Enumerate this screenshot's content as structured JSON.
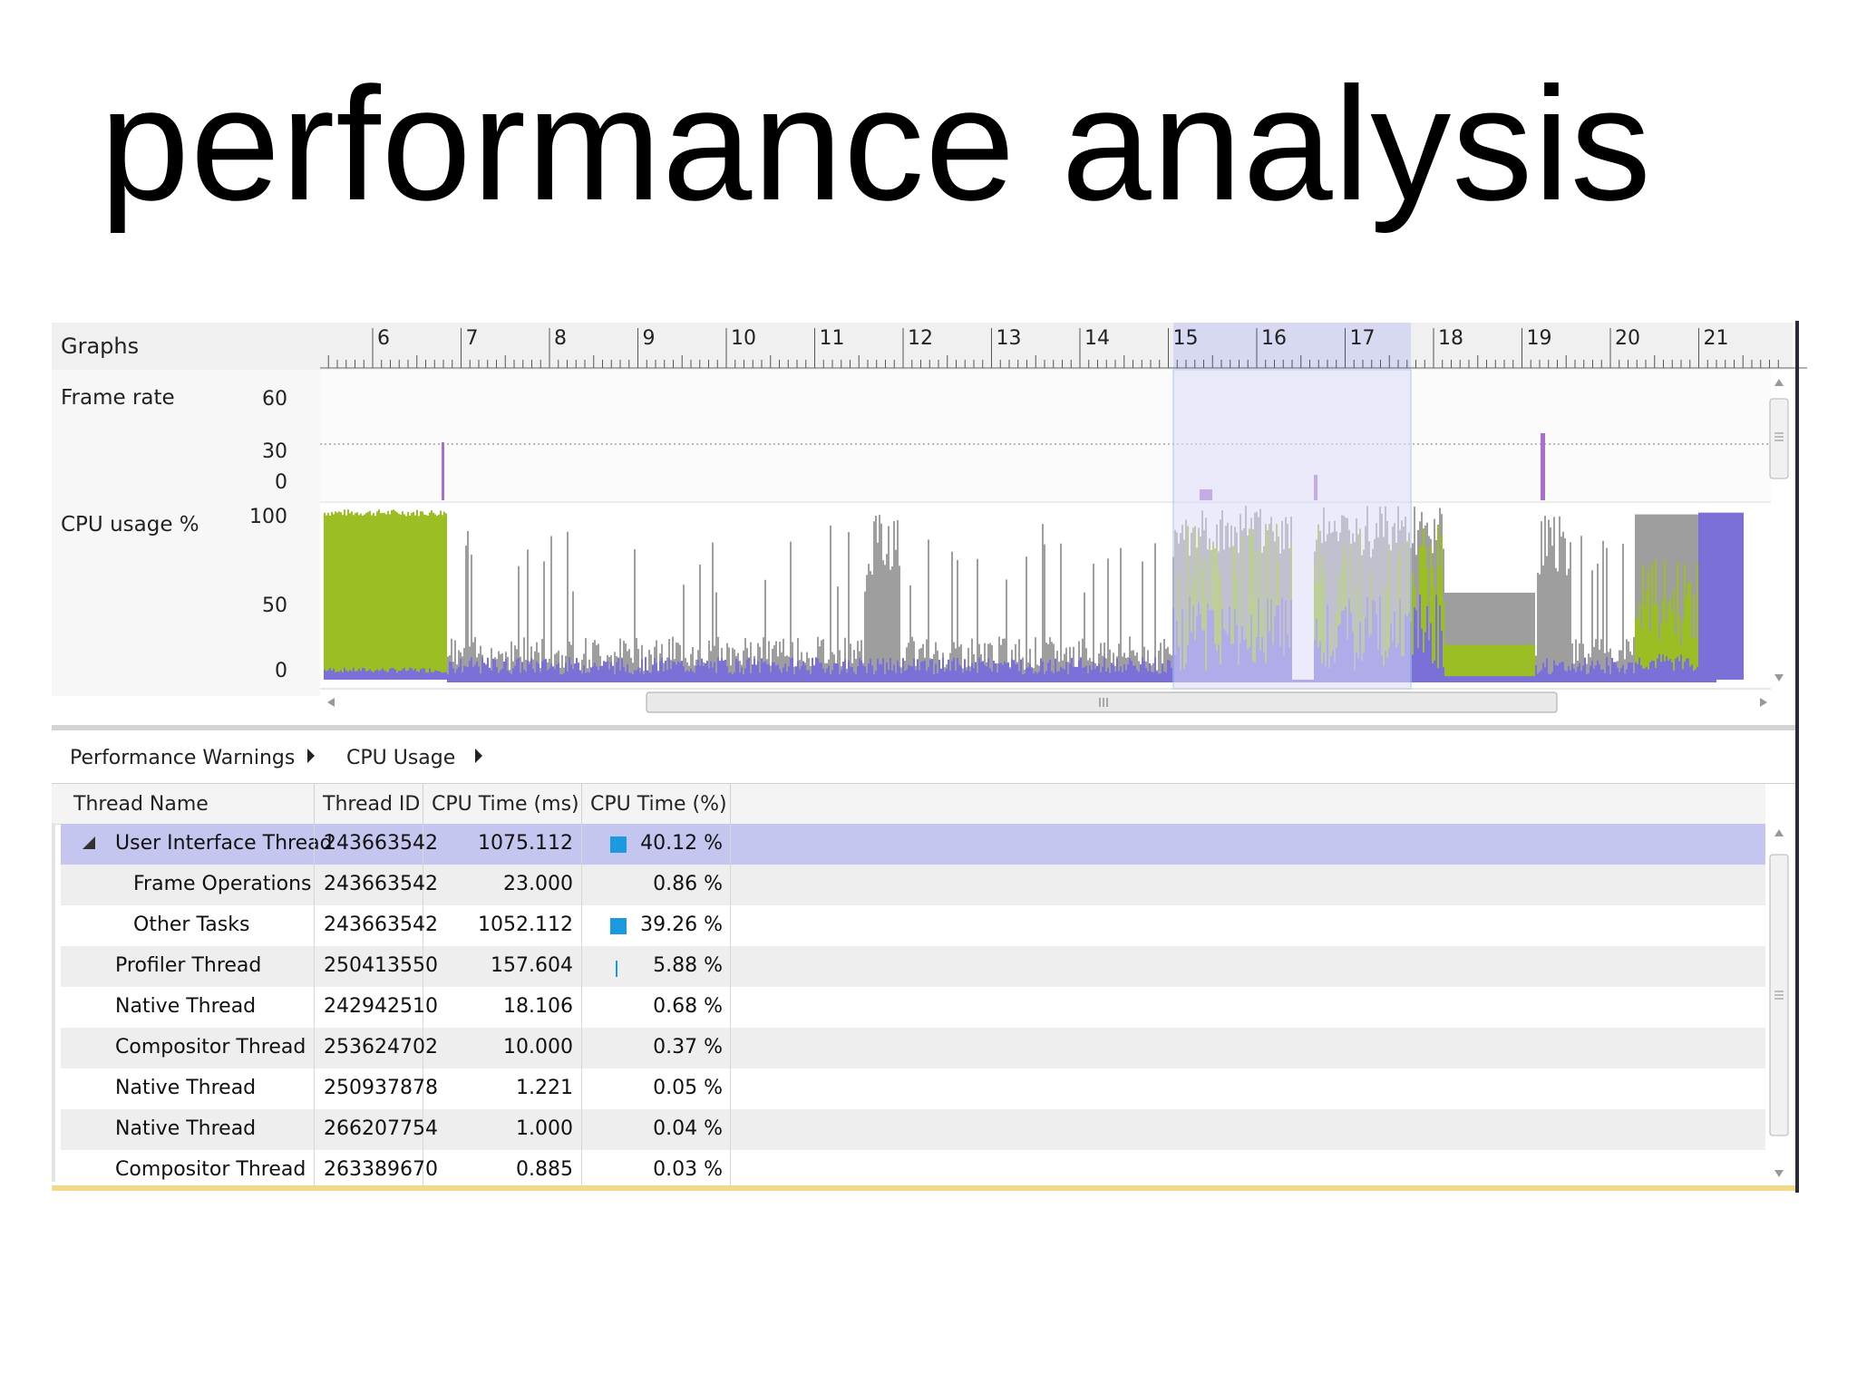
{
  "slide": {
    "title": "performance analysis"
  },
  "graphs": {
    "header_label": "Graphs",
    "ruler_ticks": [
      "6",
      "7",
      "8",
      "9",
      "10",
      "11",
      "12",
      "13",
      "14",
      "15",
      "16",
      "17",
      "18",
      "19",
      "20",
      "21"
    ],
    "frame_rate": {
      "label": "Frame rate",
      "axis": [
        "60",
        "30",
        "0"
      ]
    },
    "cpu_usage": {
      "label": "CPU usage %",
      "axis": [
        "100",
        "50",
        "0"
      ]
    },
    "selection_range": [
      "15",
      "17"
    ],
    "colors": {
      "green": "#9bbe24",
      "gray": "#9e9e9e",
      "purple": "#7b6fd8",
      "selection": "#dcdcf8",
      "frame_spike": "#a66fd0"
    }
  },
  "breadcrumbs": {
    "items": [
      "Performance Warnings",
      "CPU Usage"
    ]
  },
  "table": {
    "columns": [
      "Thread Name",
      "Thread ID",
      "CPU Time (ms)",
      "CPU Time (%)"
    ],
    "rows": [
      {
        "name": "User Interface Thread",
        "id": "243663542",
        "ms": "1075.112",
        "pct": "40.12 %",
        "indent": 0,
        "expanded": true,
        "selected": true,
        "bar": "box"
      },
      {
        "name": "Frame Operations",
        "id": "243663542",
        "ms": "23.000",
        "pct": "0.86 %",
        "indent": 1,
        "bar": ""
      },
      {
        "name": "Other Tasks",
        "id": "243663542",
        "ms": "1052.112",
        "pct": "39.26 %",
        "indent": 1,
        "bar": "box"
      },
      {
        "name": "Profiler Thread",
        "id": "250413550",
        "ms": "157.604",
        "pct": "5.88 %",
        "indent": 0,
        "bar": "thin"
      },
      {
        "name": "Native Thread",
        "id": "242942510",
        "ms": "18.106",
        "pct": "0.68 %",
        "indent": 0,
        "bar": ""
      },
      {
        "name": "Compositor Thread",
        "id": "253624702",
        "ms": "10.000",
        "pct": "0.37 %",
        "indent": 0,
        "bar": ""
      },
      {
        "name": "Native Thread",
        "id": "250937878",
        "ms": "1.221",
        "pct": "0.05 %",
        "indent": 0,
        "bar": ""
      },
      {
        "name": "Native Thread",
        "id": "266207754",
        "ms": "1.000",
        "pct": "0.04 %",
        "indent": 0,
        "bar": ""
      },
      {
        "name": "Compositor Thread",
        "id": "263389670",
        "ms": "0.885",
        "pct": "0.03 %",
        "indent": 0,
        "bar": ""
      }
    ]
  }
}
